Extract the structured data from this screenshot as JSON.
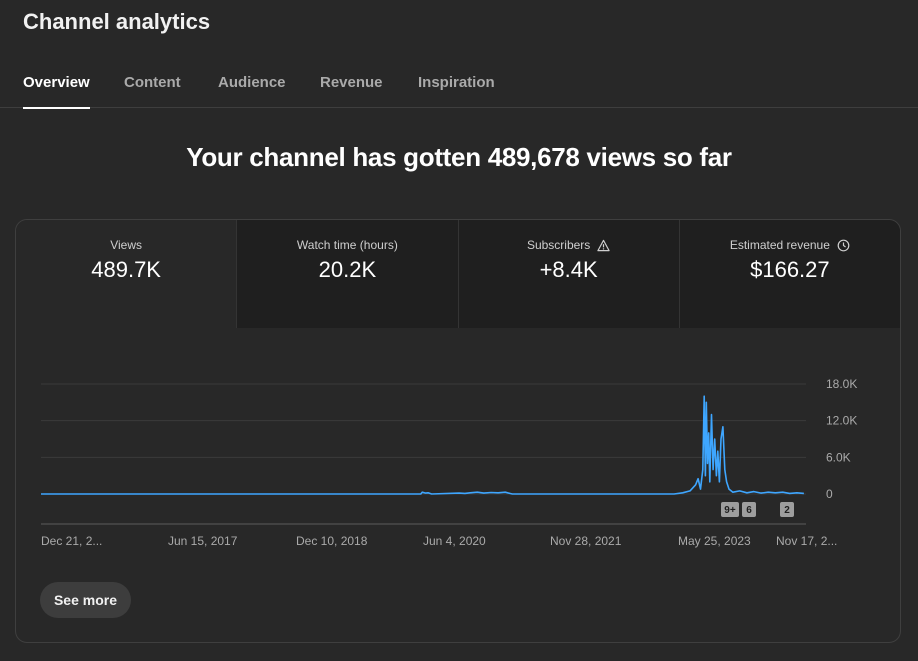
{
  "header": {
    "title": "Channel analytics"
  },
  "tabs": [
    {
      "label": "Overview",
      "active": true
    },
    {
      "label": "Content",
      "active": false
    },
    {
      "label": "Audience",
      "active": false
    },
    {
      "label": "Revenue",
      "active": false
    },
    {
      "label": "Inspiration",
      "active": false
    }
  ],
  "headline": "Your channel has gotten 489,678 views so far",
  "metrics": [
    {
      "label": "Views",
      "value": "489.7K",
      "icon": ""
    },
    {
      "label": "Watch time (hours)",
      "value": "20.2K",
      "icon": ""
    },
    {
      "label": "Subscribers",
      "value": "+8.4K",
      "icon": "warning-icon"
    },
    {
      "label": "Estimated revenue",
      "value": "$166.27",
      "icon": "clock-icon"
    }
  ],
  "colors": {
    "line": "#3ea6ff",
    "background": "#282828",
    "grid": "#3a3a3a"
  },
  "markers": [
    "9+",
    "6",
    "2"
  ],
  "see_more_label": "See more",
  "chart_data": {
    "type": "line",
    "title": "",
    "xlabel": "",
    "ylabel": "",
    "x_tick_labels": [
      "Dec 21, 2...",
      "Jun 15, 2017",
      "Dec 10, 2018",
      "Jun 4, 2020",
      "Nov 28, 2021",
      "May 25, 2023",
      "Nov 17, 2..."
    ],
    "y_tick_labels": [
      "18.0K",
      "12.0K",
      "6.0K",
      "0"
    ],
    "ylim": [
      0,
      18000
    ],
    "grid": true,
    "series": [
      {
        "values_by_date": [
          [
            "2015-12-21",
            0
          ],
          [
            "2020-06-04",
            0
          ],
          [
            "2020-06-10",
            300
          ],
          [
            "2020-06-25",
            150
          ],
          [
            "2020-07-05",
            200
          ],
          [
            "2020-07-20",
            0
          ],
          [
            "2020-11-15",
            150
          ],
          [
            "2020-12-10",
            100
          ],
          [
            "2021-01-01",
            200
          ],
          [
            "2021-02-01",
            300
          ],
          [
            "2021-03-01",
            150
          ],
          [
            "2021-04-01",
            250
          ],
          [
            "2021-05-01",
            200
          ],
          [
            "2021-06-01",
            300
          ],
          [
            "2021-06-20",
            100
          ],
          [
            "2021-07-01",
            0
          ],
          [
            "2023-05-25",
            0
          ],
          [
            "2023-07-01",
            200
          ],
          [
            "2023-08-01",
            500
          ],
          [
            "2023-08-25",
            1500
          ],
          [
            "2023-09-05",
            2500
          ],
          [
            "2023-09-15",
            800
          ],
          [
            "2023-09-25",
            4000
          ],
          [
            "2023-10-01",
            16000
          ],
          [
            "2023-10-06",
            3000
          ],
          [
            "2023-10-10",
            15000
          ],
          [
            "2023-10-15",
            5000
          ],
          [
            "2023-10-20",
            10000
          ],
          [
            "2023-10-25",
            2000
          ],
          [
            "2023-11-01",
            13000
          ],
          [
            "2023-11-08",
            4000
          ],
          [
            "2023-11-15",
            9000
          ],
          [
            "2023-11-22",
            3000
          ],
          [
            "2023-11-28",
            7000
          ],
          [
            "2023-12-05",
            2000
          ],
          [
            "2023-12-12",
            9000
          ],
          [
            "2023-12-20",
            11000
          ],
          [
            "2023-12-28",
            4000
          ],
          [
            "2024-01-05",
            2000
          ],
          [
            "2024-01-15",
            800
          ],
          [
            "2024-02-01",
            300
          ],
          [
            "2024-03-01",
            500
          ],
          [
            "2024-04-01",
            200
          ],
          [
            "2024-05-01",
            400
          ],
          [
            "2024-06-01",
            150
          ],
          [
            "2024-07-01",
            300
          ],
          [
            "2024-08-01",
            200
          ],
          [
            "2024-09-01",
            300
          ],
          [
            "2024-10-01",
            100
          ],
          [
            "2024-11-01",
            200
          ],
          [
            "2024-12-01",
            100
          ]
        ]
      }
    ]
  }
}
